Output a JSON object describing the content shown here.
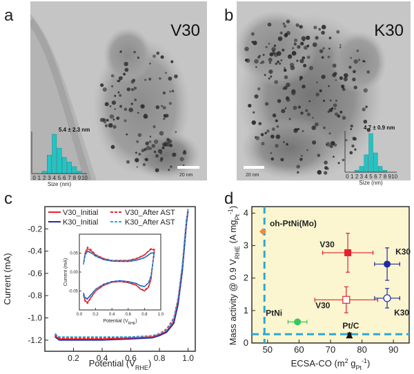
{
  "panels": {
    "a": {
      "label": "a",
      "sample": "V30",
      "size_annotation": "5.4 ± 2.3 nm",
      "histogram_xlabel": "Size (nm)",
      "histogram_ticks": [
        "0",
        "1",
        "2",
        "3",
        "4",
        "5",
        "6",
        "7",
        "8",
        "9",
        "10"
      ],
      "histogram_counts": [
        0,
        0,
        1,
        8,
        17,
        11,
        7,
        5,
        3,
        1,
        0
      ],
      "scale_bar": "20 nm"
    },
    "b": {
      "label": "b",
      "sample": "K30",
      "size_annotation": "4.7 ± 0.9 nm",
      "histogram_xlabel": "Size (nm)",
      "histogram_ticks": [
        "0",
        "1",
        "2",
        "3",
        "4",
        "5",
        "6",
        "7",
        "8",
        "9",
        "10"
      ],
      "histogram_counts": [
        0,
        0,
        1,
        3,
        9,
        20,
        10,
        3,
        1,
        0,
        0
      ],
      "scale_bar": "20 nm"
    },
    "c": {
      "label": "c"
    },
    "d": {
      "label": "d"
    }
  },
  "colors": {
    "red": "#e3202c",
    "blue": "#1f2aa6",
    "lightblue": "#2aa8d8",
    "teal": "#22c4c4",
    "orange": "#f08a3c",
    "green": "#33c95a",
    "yellow_bg": "#fbf6cf"
  },
  "chart_data": [
    {
      "id": "c-main",
      "type": "line",
      "xlabel": "Potential (VRHE)",
      "ylabel": "Current (mA)",
      "xlim": [
        0.0,
        1.05
      ],
      "ylim": [
        -1.3,
        0.0
      ],
      "xticks": [
        "0.2",
        "0.4",
        "0.6",
        "0.8",
        "1.0"
      ],
      "yticks": [
        "-0.2",
        "-0.4",
        "-0.6",
        "-0.8",
        "-1.0",
        "-1.2"
      ],
      "legend": [
        "V30_Initial",
        "V30_After AST",
        "K30_Initial",
        "K30_After AST"
      ],
      "series": [
        {
          "name": "V30_Initial",
          "x": [
            0.07,
            0.1,
            0.2,
            0.4,
            0.6,
            0.75,
            0.8,
            0.85,
            0.9,
            0.93,
            0.96,
            0.98,
            0.99,
            1.0
          ],
          "y": [
            -1.16,
            -1.19,
            -1.19,
            -1.19,
            -1.18,
            -1.17,
            -1.15,
            -1.12,
            -1.03,
            -0.85,
            -0.55,
            -0.25,
            -0.12,
            -0.03
          ]
        },
        {
          "name": "V30_After AST",
          "x": [
            0.07,
            0.1,
            0.2,
            0.4,
            0.6,
            0.75,
            0.8,
            0.85,
            0.9,
            0.93,
            0.96,
            0.98,
            0.99,
            1.0
          ],
          "y": [
            -1.15,
            -1.18,
            -1.18,
            -1.18,
            -1.17,
            -1.16,
            -1.14,
            -1.1,
            -1.0,
            -0.82,
            -0.52,
            -0.22,
            -0.1,
            -0.02
          ]
        },
        {
          "name": "K30_Initial",
          "x": [
            0.07,
            0.1,
            0.2,
            0.4,
            0.6,
            0.75,
            0.8,
            0.85,
            0.9,
            0.93,
            0.96,
            0.98,
            0.99,
            1.0
          ],
          "y": [
            -1.17,
            -1.2,
            -1.2,
            -1.2,
            -1.19,
            -1.18,
            -1.16,
            -1.13,
            -1.05,
            -0.88,
            -0.58,
            -0.28,
            -0.14,
            -0.04
          ]
        },
        {
          "name": "K30_After AST",
          "x": [
            0.07,
            0.1,
            0.2,
            0.4,
            0.6,
            0.75,
            0.8,
            0.85,
            0.9,
            0.93,
            0.96,
            0.98,
            0.99,
            1.0
          ],
          "y": [
            -1.14,
            -1.17,
            -1.17,
            -1.17,
            -1.17,
            -1.16,
            -1.14,
            -1.11,
            -1.01,
            -0.83,
            -0.53,
            -0.23,
            -0.11,
            -0.02
          ]
        }
      ]
    },
    {
      "id": "c-inset",
      "type": "line",
      "xlabel": "Potential (VRHE)",
      "ylabel": "Current (mA)",
      "xlim": [
        0.0,
        1.0
      ],
      "ylim": [
        -0.1,
        0.1
      ],
      "xticks": [
        "0.0",
        "0.2",
        "0.4",
        "0.6",
        "0.8",
        "1.0"
      ],
      "yticks": [
        "0.05",
        "0.00",
        "-0.05"
      ],
      "series": [
        {
          "name": "V30_Initial",
          "anodic_x": [
            0.05,
            0.07,
            0.1,
            0.15,
            0.2,
            0.3,
            0.4,
            0.5,
            0.6,
            0.7,
            0.8,
            0.85,
            0.88,
            0.92
          ],
          "anodic_y": [
            0.02,
            0.05,
            0.062,
            0.055,
            0.045,
            0.035,
            0.03,
            0.03,
            0.03,
            0.035,
            0.045,
            0.055,
            0.06,
            0.058
          ],
          "cathodic_x": [
            0.92,
            0.88,
            0.85,
            0.8,
            0.75,
            0.7,
            0.6,
            0.5,
            0.4,
            0.3,
            0.2,
            0.15,
            0.1,
            0.07,
            0.05
          ],
          "cathodic_y": [
            0.058,
            -0.02,
            -0.04,
            -0.05,
            -0.045,
            -0.035,
            -0.028,
            -0.025,
            -0.027,
            -0.035,
            -0.05,
            -0.065,
            -0.08,
            -0.075,
            -0.06
          ]
        },
        {
          "name": "V30_After AST",
          "anodic_x": [
            0.05,
            0.07,
            0.1,
            0.15,
            0.2,
            0.3,
            0.4,
            0.5,
            0.6,
            0.7,
            0.8,
            0.85,
            0.88,
            0.92
          ],
          "anodic_y": [
            0.02,
            0.05,
            0.066,
            0.058,
            0.046,
            0.036,
            0.031,
            0.031,
            0.031,
            0.036,
            0.046,
            0.056,
            0.062,
            0.06
          ],
          "cathodic_x": [
            0.92,
            0.88,
            0.85,
            0.8,
            0.75,
            0.7,
            0.6,
            0.5,
            0.4,
            0.3,
            0.2,
            0.15,
            0.1,
            0.07,
            0.05
          ],
          "cathodic_y": [
            0.06,
            -0.018,
            -0.038,
            -0.048,
            -0.044,
            -0.034,
            -0.027,
            -0.024,
            -0.026,
            -0.034,
            -0.05,
            -0.066,
            -0.083,
            -0.078,
            -0.062
          ]
        },
        {
          "name": "K30_Initial",
          "anodic_x": [
            0.05,
            0.07,
            0.1,
            0.15,
            0.2,
            0.3,
            0.4,
            0.5,
            0.6,
            0.7,
            0.8,
            0.85,
            0.88,
            0.92
          ],
          "anodic_y": [
            0.02,
            0.045,
            0.055,
            0.05,
            0.042,
            0.033,
            0.029,
            0.028,
            0.028,
            0.031,
            0.038,
            0.045,
            0.05,
            0.05
          ],
          "cathodic_x": [
            0.92,
            0.88,
            0.85,
            0.8,
            0.75,
            0.7,
            0.6,
            0.5,
            0.4,
            0.3,
            0.2,
            0.15,
            0.1,
            0.07,
            0.05
          ],
          "cathodic_y": [
            0.05,
            -0.01,
            -0.028,
            -0.038,
            -0.036,
            -0.03,
            -0.025,
            -0.023,
            -0.025,
            -0.032,
            -0.045,
            -0.058,
            -0.07,
            -0.068,
            -0.055
          ]
        },
        {
          "name": "K30_After AST",
          "anodic_x": [
            0.05,
            0.07,
            0.1,
            0.15,
            0.2,
            0.3,
            0.4,
            0.5,
            0.6,
            0.7,
            0.8,
            0.85,
            0.88,
            0.92
          ],
          "anodic_y": [
            0.02,
            0.046,
            0.057,
            0.051,
            0.043,
            0.034,
            0.03,
            0.029,
            0.029,
            0.032,
            0.039,
            0.046,
            0.051,
            0.051
          ],
          "cathodic_x": [
            0.92,
            0.88,
            0.85,
            0.8,
            0.75,
            0.7,
            0.6,
            0.5,
            0.4,
            0.3,
            0.2,
            0.15,
            0.1,
            0.07,
            0.05
          ],
          "cathodic_y": [
            0.051,
            -0.011,
            -0.029,
            -0.039,
            -0.037,
            -0.031,
            -0.026,
            -0.024,
            -0.026,
            -0.033,
            -0.046,
            -0.06,
            -0.072,
            -0.07,
            -0.057
          ]
        }
      ]
    },
    {
      "id": "d",
      "type": "scatter",
      "xlabel": "ECSA-CO (m2 gPt-1)",
      "ylabel": "Mass activity @ 0.9 VRHE (A mgPt-1)",
      "xlim": [
        45,
        95
      ],
      "ylim": [
        0,
        4.2
      ],
      "xticks": [
        "50",
        "60",
        "70",
        "80",
        "90"
      ],
      "yticks": [
        "0",
        "1",
        "2",
        "3",
        "4"
      ],
      "reference_lines": {
        "x": 49,
        "y": 0.27
      },
      "points": [
        {
          "label": "oh-PtNi(Mo)",
          "x": 48.5,
          "y": 3.43,
          "marker": "diamond",
          "color": "orange",
          "xerr": 0,
          "yerr": 0
        },
        {
          "label": "V30",
          "x": 75.5,
          "y": 2.78,
          "marker": "square",
          "color": "red",
          "xerr": 8,
          "yerr": 0.6
        },
        {
          "label": "K30",
          "x": 88,
          "y": 2.43,
          "marker": "circle",
          "color": "blue",
          "xerr": 4,
          "yerr": 0.5
        },
        {
          "label": "V30",
          "x": 75,
          "y": 1.33,
          "marker": "square-open",
          "color": "red",
          "xerr": 10,
          "yerr": 0.4
        },
        {
          "label": "K30",
          "x": 88,
          "y": 1.38,
          "marker": "circle-open",
          "color": "blue",
          "xerr": 4,
          "yerr": 0.3
        },
        {
          "label": "PtNi",
          "x": 59.5,
          "y": 0.65,
          "marker": "circle",
          "color": "green",
          "xerr": 3,
          "yerr": 0.05
        },
        {
          "label": "Pt/C",
          "x": 76,
          "y": 0.25,
          "marker": "triangle",
          "color": "black",
          "xerr": 0.5,
          "yerr": 0.06
        }
      ]
    }
  ]
}
